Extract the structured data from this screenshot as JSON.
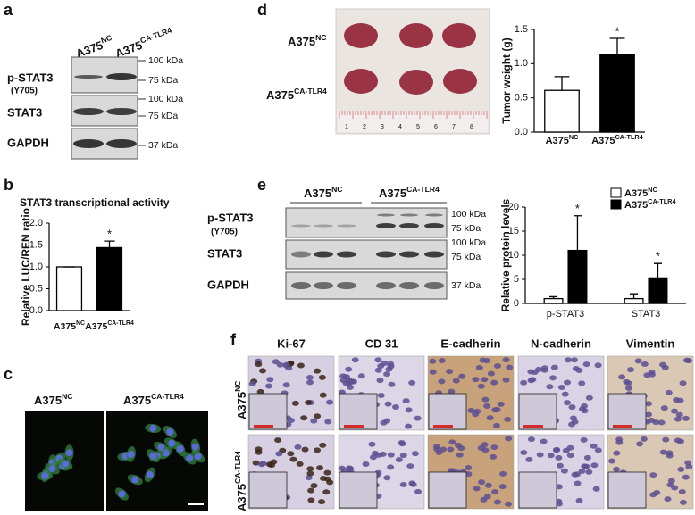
{
  "panels": {
    "a": {
      "label": "a",
      "lanes": [
        {
          "base": "A375",
          "sup": "NC"
        },
        {
          "base": "A375",
          "sup": "CA-TLR4"
        }
      ],
      "rows": [
        "p-STAT3",
        "STAT3",
        "GAPDH"
      ],
      "row_note": "(Y705)",
      "markers": [
        "100 kDa",
        "75 kDa",
        "100 kDa",
        "75 kDa",
        "37 kDa"
      ]
    },
    "b": {
      "label": "b"
    },
    "c": {
      "label": "c",
      "lanes": [
        {
          "base": "A375",
          "sup": "NC"
        },
        {
          "base": "A375",
          "sup": "CA-TLR4"
        }
      ]
    },
    "d": {
      "label": "d",
      "groups": [
        {
          "base": "A375",
          "sup": "NC"
        },
        {
          "base": "A375",
          "sup": "CA-TLR4"
        }
      ],
      "ruler": [
        "1",
        "2",
        "3",
        "4",
        "5",
        "6",
        "7",
        "8"
      ]
    },
    "e": {
      "label": "e",
      "lanes": [
        {
          "base": "A375",
          "sup": "NC"
        },
        {
          "base": "A375",
          "sup": "CA-TLR4"
        }
      ],
      "rows": [
        "p-STAT3",
        "STAT3",
        "GAPDH"
      ],
      "row_note": "(Y705)",
      "markers": [
        "100 kDa",
        "75 kDa",
        "100 kDa",
        "75 kDa",
        "37 kDa"
      ]
    },
    "f": {
      "label": "f",
      "columns": [
        "Ki-67",
        "CD 31",
        "E-cadherin",
        "N-cadherin",
        "Vimentin"
      ],
      "rows": [
        {
          "base": "A375",
          "sup": "NC"
        },
        {
          "base": "A375",
          "sup": "CA-TLR4"
        }
      ]
    }
  },
  "chart_data": [
    {
      "type": "bar",
      "title": "STAT3 transcriptional activity",
      "y_label": "Relative LUC/REN ratio",
      "categories": [
        {
          "base": "A375",
          "sup": "NC"
        },
        {
          "base": "A375",
          "sup": "CA-TLR4"
        }
      ],
      "values": [
        1.0,
        1.44
      ],
      "errors": [
        0,
        0.15
      ],
      "colors": [
        "#ffffff",
        "#000000"
      ],
      "ylim": [
        0,
        2.0
      ],
      "yticks": [
        {
          "value": 0,
          "label": "0.0"
        },
        0.5,
        {
          "value": 1,
          "label": "1.0"
        },
        1.5,
        {
          "value": 2,
          "label": "2.0"
        }
      ],
      "annotations": [
        "*"
      ]
    },
    {
      "type": "bar",
      "y_label": "Tumor weight (g)",
      "categories": [
        {
          "base": "A375",
          "sup": "NC"
        },
        {
          "base": "A375",
          "sup": "CA-TLR4"
        }
      ],
      "values": [
        0.61,
        1.13
      ],
      "errors": [
        0.2,
        0.24
      ],
      "colors": [
        "#ffffff",
        "#000000"
      ],
      "ylim": [
        0,
        1.5
      ],
      "yticks": [
        {
          "value": 0,
          "label": "0.0"
        },
        0.5,
        {
          "value": 1,
          "label": "1.0"
        },
        1.5
      ],
      "annotations": [
        "*"
      ]
    },
    {
      "type": "bar",
      "y_label": "Relative protein levels",
      "categories": [
        "p-STAT3",
        "STAT3"
      ],
      "series": [
        {
          "name": {
            "base": "A375",
            "sup": "NC"
          },
          "color": "#ffffff",
          "values": [
            1.0,
            1.0
          ],
          "errors": [
            0.4,
            1.0
          ]
        },
        {
          "name": {
            "base": "A375",
            "sup": "CA-TLR4"
          },
          "color": "#000000",
          "values": [
            11.0,
            5.3
          ],
          "errors": [
            7.2,
            3.0
          ]
        }
      ],
      "ylim": [
        0,
        20
      ],
      "yticks": [
        0,
        5,
        10,
        15,
        20
      ],
      "legend": "top-right",
      "annotations": [
        "*",
        "*"
      ]
    }
  ]
}
